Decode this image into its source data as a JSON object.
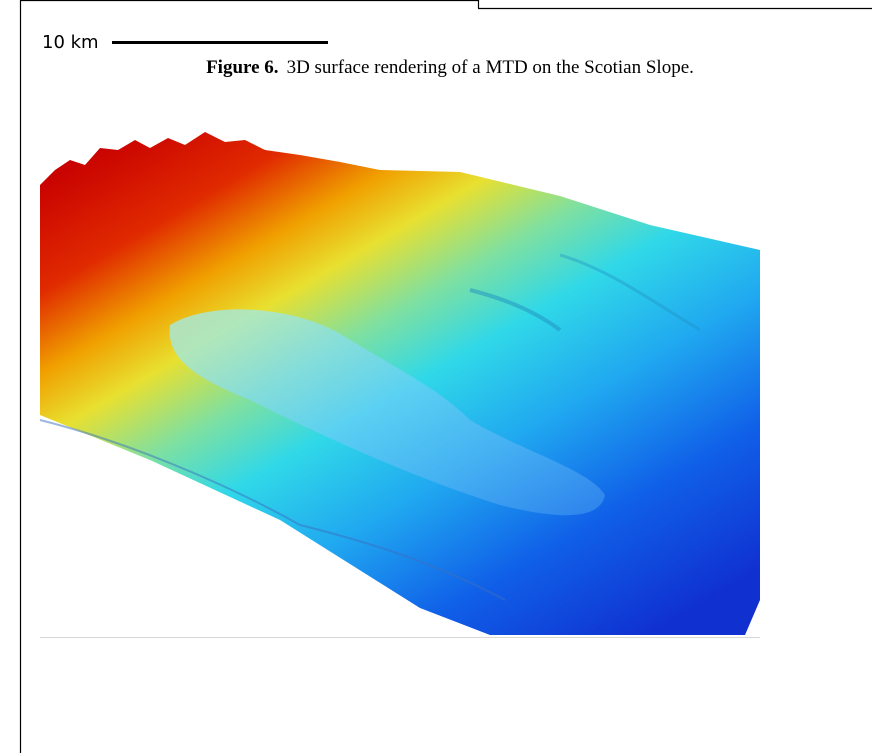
{
  "scale_bar": {
    "label": "10 km"
  },
  "figure": {
    "label": "Figure 6.",
    "caption": "3D surface rendering of a MTD on the Scotian Slope."
  }
}
